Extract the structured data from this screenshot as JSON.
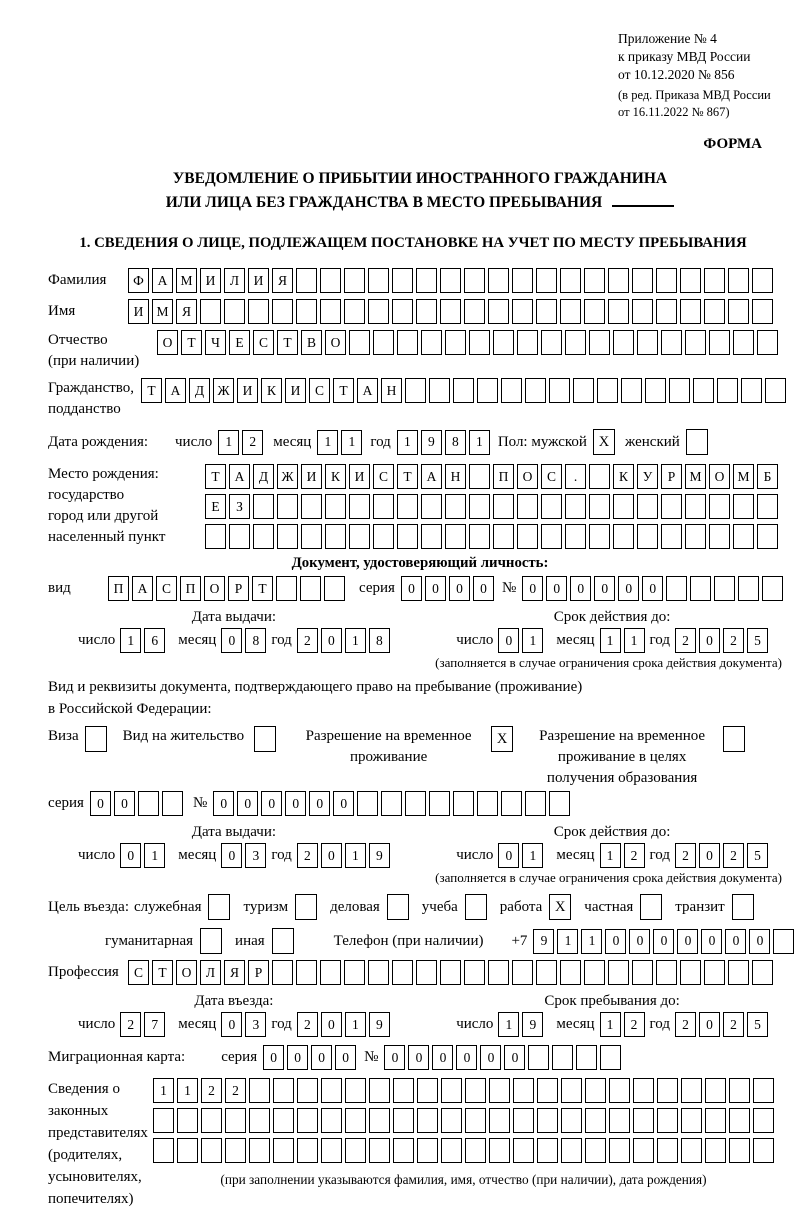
{
  "meta": {
    "appendix": [
      "Приложение № 4",
      "к приказу МВД России",
      "от 10.12.2020 № 856"
    ],
    "revision": [
      "(в ред. Приказа МВД России",
      "от 16.11.2022 № 867)"
    ],
    "form_label": "ФОРМА"
  },
  "title": {
    "line1": "УВЕДОМЛЕНИЕ О ПРИБЫТИИ ИНОСТРАННОГО ГРАЖДАНИНА",
    "line2": "ИЛИ ЛИЦА БЕЗ ГРАЖДАНСТВА В МЕСТО ПРЕБЫВАНИЯ"
  },
  "section1": {
    "heading": "1. СВЕДЕНИЯ О ЛИЦЕ, ПОДЛЕЖАЩЕМ ПОСТАНОВКЕ НА УЧЕТ ПО МЕСТУ ПРЕБЫВАНИЯ"
  },
  "person": {
    "surname": {
      "label": "Фамилия",
      "cells": {
        "chars": "ФАМИЛИЯ",
        "count": 27
      }
    },
    "given_name": {
      "label": "Имя",
      "cells": {
        "chars": "ИМЯ",
        "count": 27
      }
    },
    "patronymic": {
      "label": "Отчество",
      "label_note": "(при наличии)",
      "cells": {
        "chars": "ОТЧЕСТВО",
        "count": 26
      }
    },
    "citizenship": {
      "label": "Гражданство,",
      "label2": "подданство",
      "cells": {
        "chars": "ТАДЖИКИСТАН",
        "count": 27
      }
    },
    "birth_date": {
      "label": "Дата рождения:",
      "day_label": "число",
      "day": {
        "chars": "12",
        "count": 2
      },
      "month_label": "месяц",
      "month": {
        "chars": "11",
        "count": 2
      },
      "year_label": "год",
      "year": {
        "chars": "1981",
        "count": 4
      },
      "sex_label": "Пол: мужской",
      "male_checked": "X",
      "female_label": "женский",
      "female_checked": ""
    },
    "birth_place": {
      "label_lines": [
        "Место рождения:",
        "государство",
        "город или другой",
        "населенный пункт"
      ],
      "row1": {
        "chars": "ТАДЖИКИСТАН ПОС. КУРМОМБ",
        "count": 24
      },
      "row2": {
        "chars": "ЕЗ",
        "count": 24
      },
      "row3": {
        "chars": "",
        "count": 24
      }
    }
  },
  "identity_doc": {
    "heading": "Документ, удостоверяющий личность:",
    "kind_label": "вид",
    "kind": {
      "chars": "ПАСПОРТ",
      "count": 10
    },
    "series_label": "серия",
    "series": {
      "chars": "0000",
      "count": 4
    },
    "number_label": "№",
    "number": {
      "chars": "000000",
      "count": 11
    },
    "day_label": "число",
    "month_label": "месяц",
    "year_label": "год",
    "issue_title": "Дата выдачи:",
    "issue": {
      "day": {
        "chars": "16",
        "count": 2
      },
      "month": {
        "chars": "08",
        "count": 2
      },
      "year": {
        "chars": "2018",
        "count": 4
      }
    },
    "valid_title": "Срок действия до:",
    "valid": {
      "day": {
        "chars": "01",
        "count": 2
      },
      "month": {
        "chars": "11",
        "count": 2
      },
      "year": {
        "chars": "2025",
        "count": 4
      }
    },
    "note": "(заполняется в случае ограничения срока действия документа)"
  },
  "residence_doc": {
    "line1": "Вид и реквизиты документа, подтверждающего право на пребывание (проживание)",
    "line2": "в Российской Федерации:",
    "options": [
      {
        "label": "Виза",
        "checked": ""
      },
      {
        "label": "Вид на жительство",
        "checked": ""
      },
      {
        "lines": [
          "Разрешение на временное",
          "проживание"
        ],
        "checked": "X"
      },
      {
        "lines": [
          "Разрешение на временное",
          "проживание в целях",
          "получения образования"
        ],
        "checked": ""
      }
    ],
    "series_label": "серия",
    "series": {
      "chars": "00",
      "count": 4
    },
    "number_label": "№",
    "number": {
      "chars": "000000",
      "count": 15
    },
    "day_label": "число",
    "month_label": "месяц",
    "year_label": "год",
    "issue_title": "Дата выдачи:",
    "issue": {
      "day": {
        "chars": "01",
        "count": 2
      },
      "month": {
        "chars": "03",
        "count": 2
      },
      "year": {
        "chars": "2019",
        "count": 4
      }
    },
    "valid_title": "Срок действия до:",
    "valid": {
      "day": {
        "chars": "01",
        "count": 2
      },
      "month": {
        "chars": "12",
        "count": 2
      },
      "year": {
        "chars": "2025",
        "count": 4
      }
    },
    "note": "(заполняется в случае ограничения срока действия документа)"
  },
  "purpose": {
    "label": "Цель въезда:",
    "options": [
      {
        "label": "служебная",
        "checked": ""
      },
      {
        "label": "туризм",
        "checked": ""
      },
      {
        "label": "деловая",
        "checked": ""
      },
      {
        "label": "учеба",
        "checked": ""
      },
      {
        "label": "работа",
        "checked": "X"
      },
      {
        "label": "частная",
        "checked": ""
      },
      {
        "label": "транзит",
        "checked": ""
      },
      {
        "label": "гуманитарная",
        "checked": ""
      },
      {
        "label": "иная",
        "checked": ""
      }
    ],
    "phone_label": "Телефон (при наличии)",
    "phone_prefix": "+7",
    "phone": {
      "chars": "9110000000",
      "count": 11
    }
  },
  "profession": {
    "label": "Профессия",
    "cells": {
      "chars": "СТОЛЯР",
      "count": 27
    }
  },
  "entry": {
    "day_label": "число",
    "month_label": "месяц",
    "year_label": "год",
    "entry_title": "Дата въезда:",
    "entry_date": {
      "day": {
        "chars": "27",
        "count": 2
      },
      "month": {
        "chars": "03",
        "count": 2
      },
      "year": {
        "chars": "2019",
        "count": 4
      }
    },
    "stay_title": "Срок пребывания до:",
    "stay_until": {
      "day": {
        "chars": "19",
        "count": 2
      },
      "month": {
        "chars": "12",
        "count": 2
      },
      "year": {
        "chars": "2025",
        "count": 4
      }
    }
  },
  "migration_card": {
    "label": "Миграционная карта:",
    "series_label": "серия",
    "series": {
      "chars": "0000",
      "count": 4
    },
    "number_label": "№",
    "number": {
      "chars": "000000",
      "count": 10
    }
  },
  "representatives": {
    "label_lines": [
      "Сведения о",
      "законных",
      "представителях",
      "(родителях,",
      "усыновителях,",
      "попечителях)"
    ],
    "row1": {
      "chars": "1122",
      "count": 26
    },
    "row2": {
      "chars": "",
      "count": 26
    },
    "row3": {
      "chars": "",
      "count": 26
    },
    "note": "(при заполнении указываются фамилия, имя, отчество (при наличии), дата рождения)"
  }
}
